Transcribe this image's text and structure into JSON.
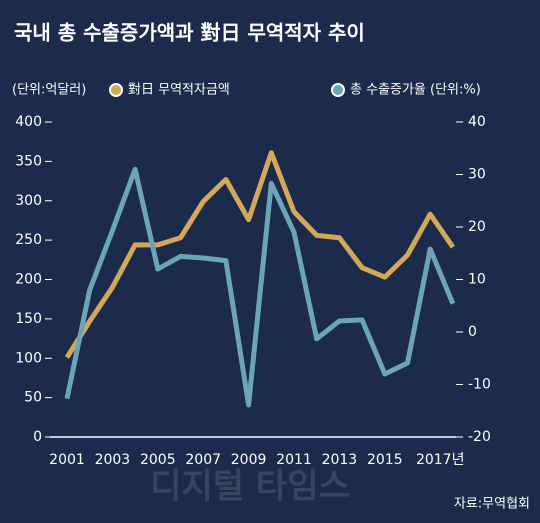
{
  "chart_data": {
    "type": "line",
    "title": "국내 총 수출증가액과 對日 무역적자 추이",
    "ylabel": "(단위:억달러)",
    "source": "자료:무역협회",
    "watermark": "디지털 타임스",
    "categories": [
      "2001",
      null,
      "2003",
      null,
      "2005",
      null,
      "2007",
      null,
      "2009",
      null,
      "2011",
      null,
      "2013",
      null,
      "2015",
      null,
      "2017년",
      null
    ],
    "series": [
      {
        "name": "對日 무역적자금액",
        "color": "#d3a85b",
        "axis": "y",
        "values": [
          101,
          147,
          190,
          244,
          244,
          253,
          299,
          327,
          276,
          361,
          286,
          256,
          253,
          215,
          203,
          231,
          283,
          241
        ]
      },
      {
        "name": "총 수출증가율 (단위:%)",
        "color": "#6aa5b8",
        "axis": "y2",
        "values": [
          -12.7,
          8.0,
          19.3,
          31.0,
          12.0,
          14.4,
          14.1,
          13.6,
          -13.9,
          28.3,
          19.0,
          -1.3,
          2.1,
          2.3,
          -8.0,
          -5.9,
          15.8,
          5.4
        ]
      }
    ],
    "ylim": [
      0,
      400
    ],
    "yticks": [
      0,
      50,
      100,
      150,
      200,
      250,
      300,
      350,
      400
    ],
    "y2lim": [
      -20,
      40
    ],
    "y2ticks": [
      -20,
      -10,
      0,
      10,
      20,
      30,
      40
    ]
  }
}
